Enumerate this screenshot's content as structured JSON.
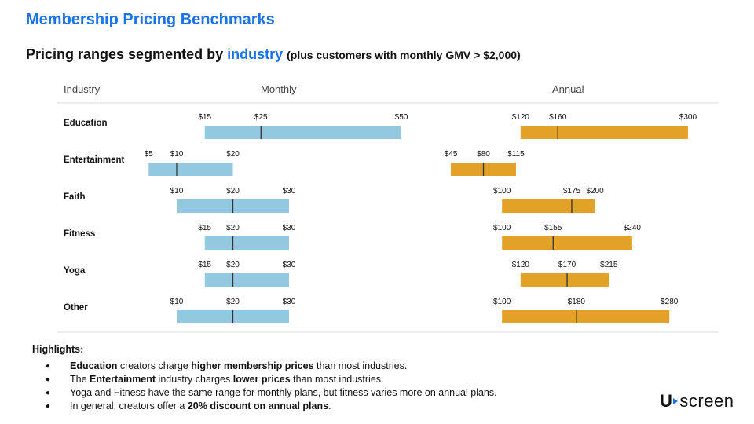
{
  "header": {
    "title": "Membership Pricing Benchmarks",
    "subtitle_prefix": "Pricing ranges segmented by ",
    "subtitle_keyword": "industry",
    "subtitle_note": "(plus customers with monthly GMV > $2,000)"
  },
  "chart_data": {
    "type": "range-bar",
    "column_headers": {
      "industry": "Industry",
      "monthly": "Monthly",
      "annual": "Annual"
    },
    "categories": [
      "Education",
      "Entertainment",
      "Faith",
      "Fitness",
      "Yoga",
      "Other"
    ],
    "series": [
      {
        "name": "Monthly",
        "color": "#92c9e0",
        "axis_range": [
          5,
          50
        ],
        "values": [
          {
            "min": 15,
            "median": 25,
            "max": 50,
            "labels": [
              "$15",
              "$25",
              "$50"
            ]
          },
          {
            "min": 5,
            "median": 10,
            "max": 20,
            "labels": [
              "$5",
              "$10",
              "$20"
            ]
          },
          {
            "min": 10,
            "median": 20,
            "max": 30,
            "labels": [
              "$10",
              "$20",
              "$30"
            ]
          },
          {
            "min": 15,
            "median": 20,
            "max": 30,
            "labels": [
              "$15",
              "$20",
              "$30"
            ]
          },
          {
            "min": 15,
            "median": 20,
            "max": 30,
            "labels": [
              "$15",
              "$20",
              "$30"
            ]
          },
          {
            "min": 10,
            "median": 20,
            "max": 30,
            "labels": [
              "$10",
              "$20",
              "$30"
            ]
          }
        ]
      },
      {
        "name": "Annual",
        "color": "#e2a127",
        "axis_range": [
          45,
          300
        ],
        "values": [
          {
            "min": 120,
            "median": 160,
            "max": 300,
            "labels": [
              "$120",
              "$160",
              "$300"
            ]
          },
          {
            "min": 45,
            "median": 80,
            "max": 115,
            "labels": [
              "$45",
              "$80",
              "$115"
            ]
          },
          {
            "min": 100,
            "median": 175,
            "max": 200,
            "labels": [
              "$100",
              "$175",
              "$200"
            ]
          },
          {
            "min": 100,
            "median": 155,
            "max": 240,
            "labels": [
              "$100",
              "$155",
              "$240"
            ]
          },
          {
            "min": 120,
            "median": 170,
            "max": 215,
            "labels": [
              "$120",
              "$170",
              "$215"
            ]
          },
          {
            "min": 100,
            "median": 180,
            "max": 280,
            "labels": [
              "$100",
              "$180",
              "$280"
            ]
          }
        ]
      }
    ]
  },
  "highlights": {
    "title": "Highlights:",
    "bullet": "●",
    "items": [
      [
        {
          "t": "Education",
          "b": true
        },
        {
          "t": " creators charge "
        },
        {
          "t": "higher membership prices",
          "b": true
        },
        {
          "t": " than most industries."
        }
      ],
      [
        {
          "t": "The "
        },
        {
          "t": "Entertainment",
          "b": true
        },
        {
          "t": " industry charges "
        },
        {
          "t": "lower prices",
          "b": true
        },
        {
          "t": " than most industries."
        }
      ],
      [
        {
          "t": "Yoga and Fitness have the same range for monthly plans, but fitness varies more on annual plans."
        }
      ],
      [
        {
          "t": "In general, creators offer a "
        },
        {
          "t": "20% discount on annual plans",
          "b": true
        },
        {
          "t": "."
        }
      ]
    ]
  },
  "logo": {
    "left": "U",
    "right": "screen",
    "accent": "#1a73e8"
  }
}
